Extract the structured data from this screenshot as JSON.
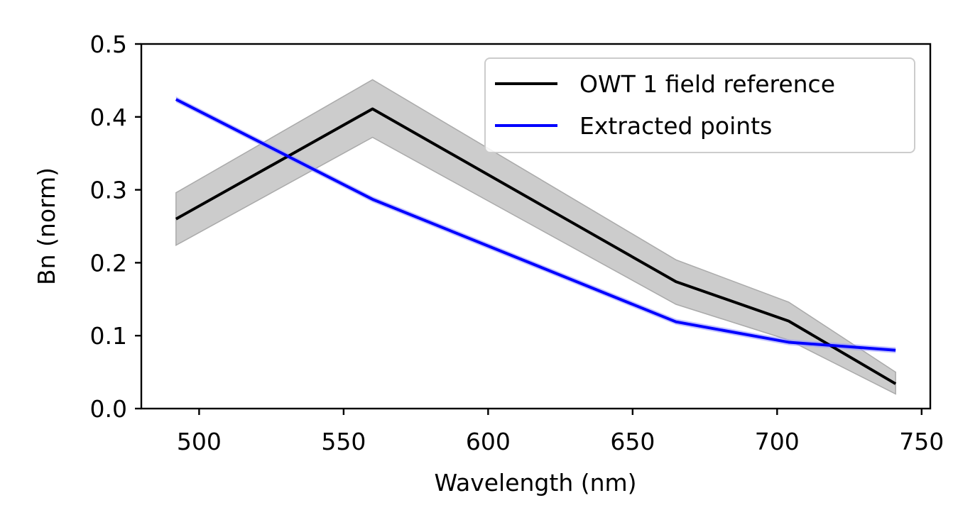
{
  "chart_data": {
    "type": "line",
    "xlabel": "Wavelength (nm)",
    "ylabel": "Bn (norm)",
    "xlim": [
      480,
      753
    ],
    "ylim": [
      0.0,
      0.5
    ],
    "x_ticks": [
      500,
      550,
      600,
      650,
      700,
      750
    ],
    "x_tick_labels": [
      "500",
      "550",
      "600",
      "650",
      "700",
      "750"
    ],
    "y_ticks": [
      0.0,
      0.1,
      0.2,
      0.3,
      0.4,
      0.5
    ],
    "y_tick_labels": [
      "0.0",
      "0.1",
      "0.2",
      "0.3",
      "0.4",
      "0.5"
    ],
    "grid": false,
    "legend_position": "top-right",
    "series": [
      {
        "name": "OWT 1 field reference",
        "color": "#000000",
        "x": [
          492,
          560,
          665,
          704,
          741
        ],
        "y": [
          0.26,
          0.411,
          0.174,
          0.12,
          0.034
        ],
        "band_lower": [
          0.224,
          0.372,
          0.143,
          0.094,
          0.02
        ],
        "band_upper": [
          0.296,
          0.451,
          0.204,
          0.146,
          0.05
        ],
        "band_color": "#cccccc"
      },
      {
        "name": "Extracted points",
        "color": "#0000ff",
        "x": [
          492,
          560,
          665,
          704,
          741
        ],
        "y": [
          0.424,
          0.287,
          0.119,
          0.091,
          0.08
        ],
        "band_lower": [
          0.42,
          0.283,
          0.115,
          0.087,
          0.076
        ],
        "band_upper": [
          0.428,
          0.291,
          0.123,
          0.095,
          0.084
        ],
        "band_color": "#9999ff"
      }
    ]
  }
}
